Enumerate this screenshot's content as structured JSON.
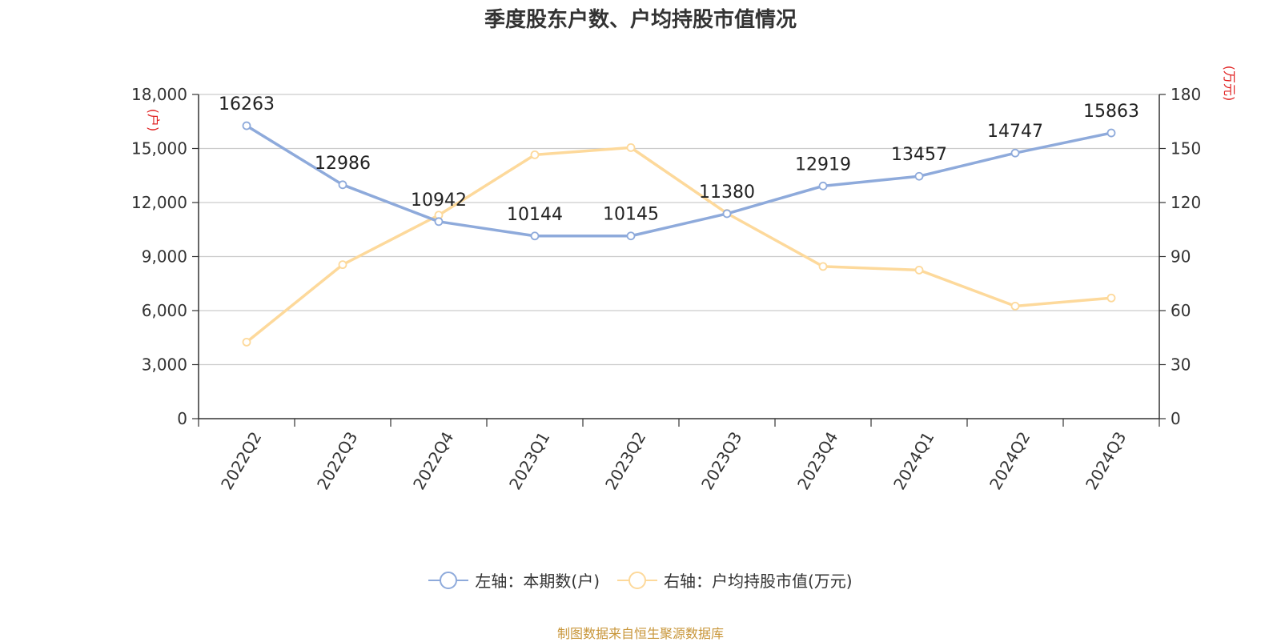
{
  "chart_data": {
    "type": "line",
    "title": "季度股东户数、户均持股市值情况",
    "categories": [
      "2022Q2",
      "2022Q3",
      "2022Q4",
      "2023Q1",
      "2023Q2",
      "2023Q3",
      "2023Q4",
      "2024Q1",
      "2024Q2",
      "2024Q3"
    ],
    "left_axis": {
      "unit": "(户)",
      "min": 0,
      "max": 18000,
      "ticks": [
        "0",
        "3,000",
        "6,000",
        "9,000",
        "12,000",
        "15,000",
        "18,000"
      ]
    },
    "right_axis": {
      "unit": "(万元)",
      "min": 0,
      "max": 180,
      "ticks": [
        "0",
        "30",
        "60",
        "90",
        "120",
        "150",
        "180"
      ]
    },
    "series": [
      {
        "name": "左轴：本期数(户)",
        "axis": "left",
        "color": "#8eaadb",
        "values": [
          16263,
          12986,
          10942,
          10144,
          10145,
          11380,
          12919,
          13457,
          14747,
          15863
        ],
        "labels": [
          "16263",
          "12986",
          "10942",
          "10144",
          "10145",
          "11380",
          "12919",
          "13457",
          "14747",
          "15863"
        ]
      },
      {
        "name": "右轴：户均持股市值(万元)",
        "axis": "right",
        "color": "#fdd99b",
        "values": [
          42.5,
          85.5,
          113,
          146.5,
          150.5,
          114,
          84.5,
          82.5,
          62.5,
          67
        ]
      }
    ],
    "grid": true,
    "legend_position": "bottom",
    "unit_color": "#e02020"
  },
  "source": "制图数据来自恒生聚源数据库"
}
